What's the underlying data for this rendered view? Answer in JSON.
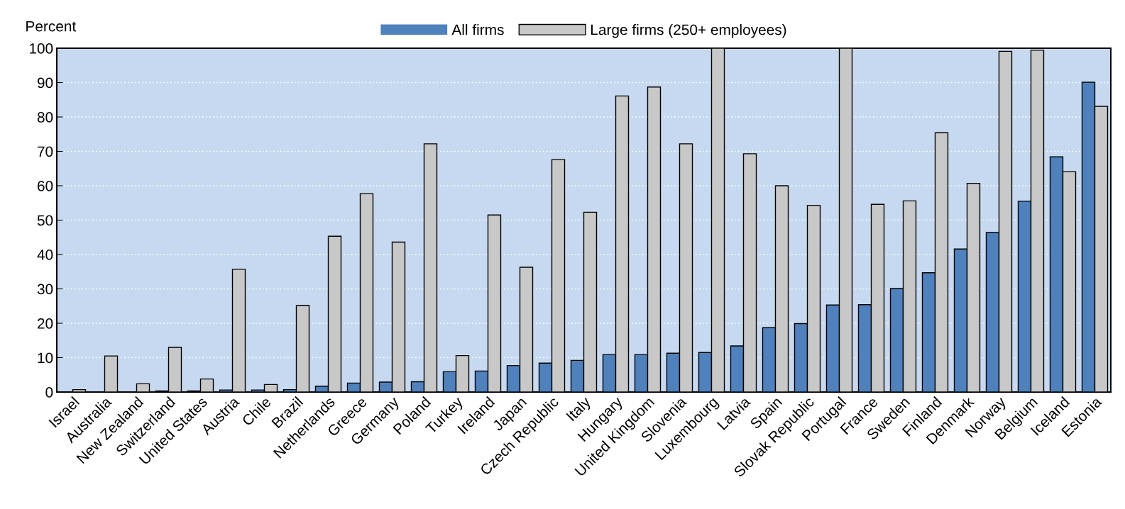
{
  "chart_data": {
    "type": "bar",
    "ylabel": "Percent",
    "categories": [
      "Israel",
      "Australia",
      "New Zealand",
      "Switzerland",
      "United States",
      "Austria",
      "Chile",
      "Brazil",
      "Netherlands",
      "Greece",
      "Germany",
      "Poland",
      "Turkey",
      "Ireland",
      "Japan",
      "Czech Republic",
      "Italy",
      "Hungary",
      "United Kingdom",
      "Slovenia",
      "Luxembourg",
      "Latvia",
      "Spain",
      "Slovak Republic",
      "Portugal",
      "France",
      "Sweden",
      "Finland",
      "Denmark",
      "Norway",
      "Belgium",
      "Iceland",
      "Estonia"
    ],
    "series": [
      {
        "name": "All firms",
        "color": "#4f81bd",
        "values": [
          0,
          0,
          0,
          0.3,
          0.3,
          0.6,
          0.6,
          0.7,
          1.7,
          2.6,
          2.9,
          3.0,
          5.9,
          6.1,
          7.7,
          8.4,
          9.2,
          10.9,
          10.9,
          11.3,
          11.5,
          13.4,
          18.7,
          19.9,
          25.3,
          25.4,
          30.1,
          34.7,
          41.6,
          46.4,
          55.5,
          68.4,
          90.1
        ]
      },
      {
        "name": "Large firms (250+ employees)",
        "color": "#c8c8c8",
        "values": [
          0.7,
          10.5,
          2.4,
          13,
          3.8,
          35.7,
          2.2,
          25.2,
          45.3,
          57.7,
          43.6,
          72.2,
          10.6,
          51.5,
          36.3,
          67.6,
          52.3,
          86.1,
          88.7,
          72.2,
          100,
          69.3,
          60,
          54.3,
          100,
          54.6,
          55.6,
          75.4,
          60.7,
          99.1,
          99.4,
          64.1,
          83.1
        ]
      }
    ],
    "ylim": [
      0,
      100
    ],
    "yticks": [
      0,
      10,
      20,
      30,
      40,
      50,
      60,
      70,
      80,
      90,
      100
    ],
    "grid": "y",
    "legend": "top"
  }
}
